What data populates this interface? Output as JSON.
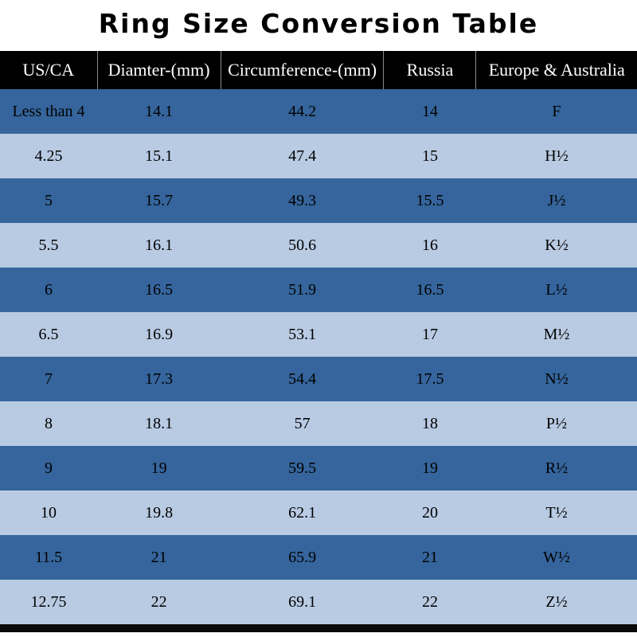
{
  "title": "Ring Size Conversion Table",
  "colors": {
    "header_bg": "#000000",
    "header_text": "#FFFFFF",
    "row_dark": "#35659C",
    "row_light": "#B9CBE3",
    "body_text": "#000000"
  },
  "chart_data": {
    "type": "table",
    "title": "Ring Size Conversion Table",
    "columns": [
      "US/CA",
      "Diamter-(mm)",
      "Circumference-(mm)",
      "Russia",
      "Europe & Australia"
    ],
    "rows": [
      [
        "Less than 4",
        "14.1",
        "44.2",
        "14",
        "F"
      ],
      [
        "4.25",
        "15.1",
        "47.4",
        "15",
        "H½"
      ],
      [
        "5",
        "15.7",
        "49.3",
        "15.5",
        "J½"
      ],
      [
        "5.5",
        "16.1",
        "50.6",
        "16",
        "K½"
      ],
      [
        "6",
        "16.5",
        "51.9",
        "16.5",
        "L½"
      ],
      [
        "6.5",
        "16.9",
        "53.1",
        "17",
        "M½"
      ],
      [
        "7",
        "17.3",
        "54.4",
        "17.5",
        "N½"
      ],
      [
        "8",
        "18.1",
        "57",
        "18",
        "P½"
      ],
      [
        "9",
        "19",
        "59.5",
        "19",
        "R½"
      ],
      [
        "10",
        "19.8",
        "62.1",
        "20",
        "T½"
      ],
      [
        "11.5",
        "21",
        "65.9",
        "21",
        "W½"
      ],
      [
        "12.75",
        "22",
        "69.1",
        "22",
        "Z½"
      ]
    ],
    "layout": {
      "row_striping": "alternating dark/light starting dark",
      "alignment": "center",
      "grid": "header column separators only"
    }
  }
}
